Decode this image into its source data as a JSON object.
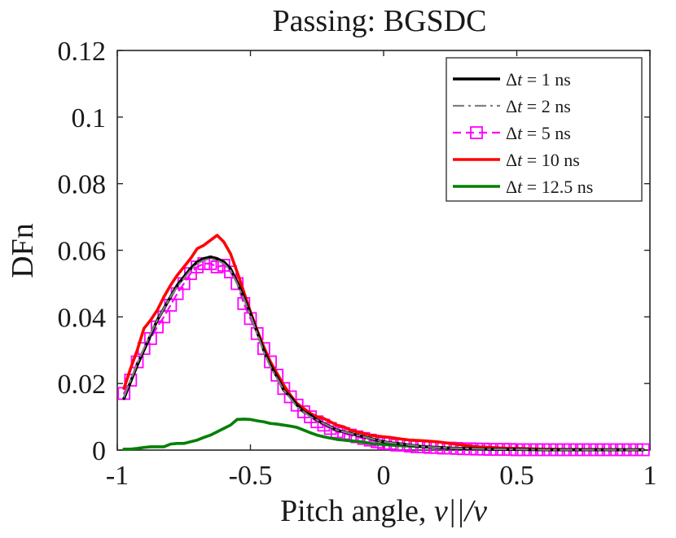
{
  "chart_data": {
    "type": "line",
    "title": "Passing: BGSDC",
    "xlabel": "Pitch angle, ",
    "xlabel_math": "v||/v",
    "ylabel": "DFn",
    "xlim": [
      -1,
      1
    ],
    "ylim": [
      0,
      0.12
    ],
    "xticks": [
      -1,
      -0.5,
      0,
      0.5,
      1
    ],
    "xtick_labels": [
      "-1",
      "-0.5",
      "0",
      "0.5",
      "1"
    ],
    "yticks": [
      0,
      0.02,
      0.04,
      0.06,
      0.08,
      0.1,
      0.12
    ],
    "ytick_labels": [
      "0",
      "0.02",
      "0.04",
      "0.06",
      "0.08",
      "0.1",
      "0.12"
    ],
    "grid": false,
    "legend_position": "top-right",
    "series": [
      {
        "name": "Δt = 1 ns",
        "legend_prefix": "Δ",
        "legend_var": "t",
        "legend_suffix": " = 1 ns",
        "color": "#000000",
        "style": "solid",
        "x": [
          -0.975,
          -0.95,
          -0.925,
          -0.9,
          -0.875,
          -0.85,
          -0.825,
          -0.8,
          -0.775,
          -0.75,
          -0.725,
          -0.7,
          -0.675,
          -0.65,
          -0.625,
          -0.6,
          -0.575,
          -0.55,
          -0.525,
          -0.5,
          -0.475,
          -0.45,
          -0.425,
          -0.4,
          -0.375,
          -0.35,
          -0.325,
          -0.3,
          -0.275,
          -0.25,
          -0.225,
          -0.2,
          -0.175,
          -0.15,
          -0.125,
          -0.1,
          -0.075,
          -0.05,
          -0.025,
          0.0,
          0.025,
          0.05,
          0.1,
          0.15,
          0.2,
          0.25,
          0.3,
          0.35,
          0.4,
          0.45,
          0.5,
          0.6,
          0.7,
          0.8,
          0.9,
          0.975
        ],
        "values": [
          0.0155,
          0.0205,
          0.0255,
          0.03,
          0.0345,
          0.039,
          0.0425,
          0.046,
          0.0495,
          0.052,
          0.0545,
          0.0565,
          0.0575,
          0.058,
          0.0575,
          0.0565,
          0.0545,
          0.0505,
          0.046,
          0.041,
          0.0355,
          0.03,
          0.0255,
          0.022,
          0.018,
          0.016,
          0.0135,
          0.0115,
          0.0105,
          0.009,
          0.008,
          0.007,
          0.006,
          0.0055,
          0.005,
          0.0045,
          0.004,
          0.0035,
          0.003,
          0.0025,
          0.0022,
          0.002,
          0.0015,
          0.001,
          0.0008,
          0.0006,
          0.0005,
          0.0004,
          0.0003,
          0.0002,
          0.0002,
          0.0001,
          0.0001,
          0.0001,
          0.0001,
          0.0001
        ]
      },
      {
        "name": "Δt = 2 ns",
        "legend_prefix": "Δ",
        "legend_var": "t",
        "legend_suffix": " = 2 ns",
        "color": "#808080",
        "style": "dashdot",
        "x": [
          -0.975,
          -0.95,
          -0.925,
          -0.9,
          -0.875,
          -0.85,
          -0.825,
          -0.8,
          -0.775,
          -0.75,
          -0.725,
          -0.7,
          -0.675,
          -0.65,
          -0.625,
          -0.6,
          -0.575,
          -0.55,
          -0.525,
          -0.5,
          -0.475,
          -0.45,
          -0.425,
          -0.4,
          -0.375,
          -0.35,
          -0.325,
          -0.3,
          -0.275,
          -0.25,
          -0.225,
          -0.2,
          -0.175,
          -0.15,
          -0.125,
          -0.1,
          -0.075,
          -0.05,
          -0.025,
          0.0,
          0.025,
          0.05,
          0.1,
          0.15,
          0.2,
          0.25,
          0.3,
          0.35,
          0.4,
          0.45,
          0.5,
          0.6,
          0.7,
          0.8,
          0.9,
          0.975
        ],
        "values": [
          0.016,
          0.021,
          0.026,
          0.0305,
          0.035,
          0.039,
          0.0425,
          0.046,
          0.049,
          0.0515,
          0.054,
          0.056,
          0.057,
          0.0575,
          0.057,
          0.056,
          0.054,
          0.05,
          0.0455,
          0.0405,
          0.035,
          0.0295,
          0.025,
          0.0215,
          0.018,
          0.0155,
          0.013,
          0.0115,
          0.01,
          0.009,
          0.008,
          0.007,
          0.006,
          0.0055,
          0.005,
          0.0045,
          0.004,
          0.0035,
          0.003,
          0.0025,
          0.0022,
          0.002,
          0.0015,
          0.001,
          0.0008,
          0.0006,
          0.0005,
          0.0004,
          0.0003,
          0.0002,
          0.0002,
          0.0001,
          0.0001,
          0.0001,
          0.0001,
          0.0001
        ]
      },
      {
        "name": "Δt = 5 ns",
        "legend_prefix": "Δ",
        "legend_var": "t",
        "legend_suffix": " = 5 ns",
        "color": "#ff00ff",
        "style": "dashed-square",
        "x": [
          -0.975,
          -0.95,
          -0.925,
          -0.9,
          -0.875,
          -0.85,
          -0.825,
          -0.8,
          -0.775,
          -0.75,
          -0.725,
          -0.7,
          -0.675,
          -0.65,
          -0.625,
          -0.6,
          -0.575,
          -0.55,
          -0.525,
          -0.5,
          -0.475,
          -0.45,
          -0.425,
          -0.4,
          -0.375,
          -0.35,
          -0.325,
          -0.3,
          -0.275,
          -0.25,
          -0.225,
          -0.2,
          -0.175,
          -0.15,
          -0.125,
          -0.1,
          -0.075,
          -0.05,
          -0.025,
          0.0,
          0.025,
          0.05,
          0.075,
          0.1,
          0.125,
          0.15,
          0.175,
          0.2,
          0.225,
          0.25,
          0.275,
          0.3,
          0.325,
          0.35,
          0.375,
          0.4,
          0.425,
          0.45,
          0.475,
          0.5,
          0.525,
          0.55,
          0.575,
          0.6,
          0.625,
          0.65,
          0.675,
          0.7,
          0.725,
          0.75,
          0.775,
          0.8,
          0.825,
          0.85,
          0.875,
          0.9,
          0.925,
          0.95,
          0.975
        ],
        "values": [
          0.017,
          0.021,
          0.0265,
          0.0305,
          0.0335,
          0.037,
          0.04,
          0.0435,
          0.047,
          0.05,
          0.053,
          0.055,
          0.056,
          0.056,
          0.055,
          0.0555,
          0.0535,
          0.05,
          0.044,
          0.0395,
          0.035,
          0.0305,
          0.0265,
          0.0225,
          0.0185,
          0.016,
          0.0135,
          0.0115,
          0.01,
          0.0085,
          0.0075,
          0.0065,
          0.0055,
          0.005,
          0.0045,
          0.004,
          0.0035,
          0.003,
          0.0025,
          0.002,
          0.002,
          0.0015,
          0.0015,
          0.0012,
          0.001,
          0.001,
          0.0008,
          0.0008,
          0.0006,
          0.0006,
          0.0005,
          0.0004,
          0.0004,
          0.0003,
          0.0003,
          0.0002,
          0.0002,
          0.0002,
          0.0002,
          0.0001,
          0.0001,
          0.0001,
          0.0001,
          0.0001,
          0.0001,
          0.0001,
          0.0001,
          0.0001,
          0.0001,
          0.0001,
          0.0001,
          0.0001,
          0.0001,
          0.0001,
          0.0001,
          0.0001,
          0.0001,
          0.0001,
          0.0001
        ]
      },
      {
        "name": "Δt = 10 ns",
        "legend_prefix": "Δ",
        "legend_var": "t",
        "legend_suffix": " = 10 ns",
        "color": "#ff0000",
        "style": "solid",
        "x": [
          -0.975,
          -0.95,
          -0.925,
          -0.9,
          -0.875,
          -0.85,
          -0.825,
          -0.8,
          -0.775,
          -0.75,
          -0.725,
          -0.7,
          -0.675,
          -0.65,
          -0.625,
          -0.6,
          -0.575,
          -0.55,
          -0.525,
          -0.5,
          -0.475,
          -0.45,
          -0.425,
          -0.4,
          -0.375,
          -0.35,
          -0.325,
          -0.3,
          -0.275,
          -0.25,
          -0.225,
          -0.2,
          -0.175,
          -0.15,
          -0.125,
          -0.1,
          -0.075,
          -0.05,
          -0.025,
          0.0,
          0.025,
          0.05,
          0.1,
          0.15,
          0.2,
          0.25,
          0.3,
          0.35,
          0.4,
          0.45,
          0.5,
          0.6,
          0.7,
          0.8,
          0.9,
          0.975
        ],
        "values": [
          0.0185,
          0.0245,
          0.03,
          0.0365,
          0.039,
          0.042,
          0.046,
          0.0495,
          0.0525,
          0.055,
          0.0575,
          0.0605,
          0.0615,
          0.063,
          0.0645,
          0.0625,
          0.059,
          0.0535,
          0.0475,
          0.0415,
          0.036,
          0.031,
          0.0265,
          0.023,
          0.0195,
          0.0165,
          0.014,
          0.0125,
          0.011,
          0.01,
          0.0095,
          0.0085,
          0.0075,
          0.007,
          0.006,
          0.0055,
          0.005,
          0.0045,
          0.0042,
          0.004,
          0.0038,
          0.0035,
          0.003,
          0.0028,
          0.0025,
          0.002,
          0.0015,
          0.001,
          0.0008,
          0.0006,
          0.0005,
          0.0003,
          0.0002,
          0.0002,
          0.0001,
          0.0001
        ]
      },
      {
        "name": "Δt = 12.5 ns",
        "legend_prefix": "Δ",
        "legend_var": "t",
        "legend_suffix": " = 12.5 ns",
        "color": "#008000",
        "style": "solid",
        "x": [
          -0.975,
          -0.95,
          -0.925,
          -0.9,
          -0.875,
          -0.85,
          -0.825,
          -0.8,
          -0.775,
          -0.75,
          -0.725,
          -0.7,
          -0.675,
          -0.65,
          -0.625,
          -0.6,
          -0.575,
          -0.55,
          -0.525,
          -0.5,
          -0.475,
          -0.45,
          -0.425,
          -0.4,
          -0.375,
          -0.35,
          -0.325,
          -0.3,
          -0.275,
          -0.25,
          -0.225,
          -0.2,
          -0.175,
          -0.15,
          -0.125,
          -0.1,
          -0.075,
          -0.05,
          -0.025,
          0.0,
          0.025,
          0.05,
          0.1,
          0.15,
          0.2,
          0.25,
          0.3,
          0.35,
          0.4,
          0.45,
          0.5,
          0.6,
          0.7,
          0.8,
          0.9,
          0.975
        ],
        "values": [
          0.0003,
          0.0003,
          0.0005,
          0.0008,
          0.001,
          0.001,
          0.001,
          0.0018,
          0.002,
          0.002,
          0.0025,
          0.003,
          0.0038,
          0.0045,
          0.0055,
          0.0065,
          0.0075,
          0.0092,
          0.0093,
          0.0092,
          0.0088,
          0.0085,
          0.008,
          0.0078,
          0.0075,
          0.0072,
          0.0068,
          0.006,
          0.0052,
          0.0045,
          0.004,
          0.0036,
          0.0032,
          0.003,
          0.0028,
          0.0026,
          0.0024,
          0.002,
          0.0018,
          0.0017,
          0.0015,
          0.0014,
          0.0012,
          0.001,
          0.0008,
          0.0006,
          0.0005,
          0.0004,
          0.0003,
          0.0002,
          0.0002,
          0.0001,
          0.0001,
          0.0001,
          0.0001,
          0.0001
        ]
      }
    ]
  }
}
